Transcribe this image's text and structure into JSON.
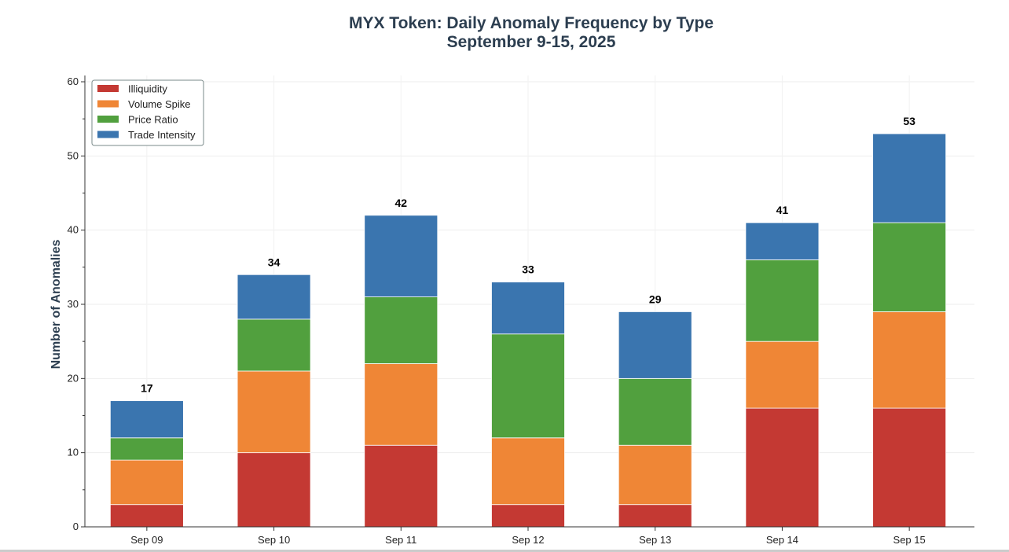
{
  "chart_data": {
    "type": "bar",
    "stacked": true,
    "title": "MYX Token: Daily Anomaly Frequency by Type",
    "subtitle": "September 9-15, 2025",
    "xlabel": "",
    "ylabel": "Number of Anomalies",
    "ylim": [
      0,
      60
    ],
    "yticks": [
      0,
      10,
      20,
      30,
      40,
      50,
      60
    ],
    "grid": true,
    "legend_position": "top-left",
    "categories": [
      "Sep 09",
      "Sep 10",
      "Sep 11",
      "Sep 12",
      "Sep 13",
      "Sep 14",
      "Sep 15"
    ],
    "series": [
      {
        "name": "Illiquidity",
        "color": "#c43933",
        "values": [
          3,
          10,
          11,
          3,
          3,
          16,
          16
        ]
      },
      {
        "name": "Volume Spike",
        "color": "#ef8636",
        "values": [
          6,
          11,
          11,
          9,
          8,
          9,
          13
        ]
      },
      {
        "name": "Price Ratio",
        "color": "#51a03e",
        "values": [
          3,
          7,
          9,
          14,
          9,
          11,
          12
        ]
      },
      {
        "name": "Trade Intensity",
        "color": "#3a75af",
        "values": [
          5,
          6,
          11,
          7,
          9,
          5,
          12
        ]
      }
    ],
    "totals": [
      17,
      34,
      42,
      33,
      29,
      41,
      53
    ]
  }
}
